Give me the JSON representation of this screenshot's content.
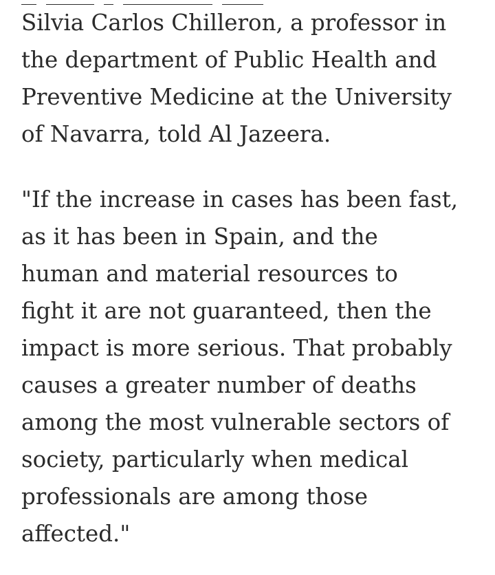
{
  "article": {
    "paragraphs": [
      {
        "lines": [
          "Silvia Carlos Chilleron, a professor in",
          "the department of Public Health and",
          "Preventive Medicine at the University",
          "of Navarra, told Al Jazeera."
        ]
      },
      {
        "lines": [
          "\"If the increase in cases has been fast,",
          "as it has been in Spain, and the",
          "human and material resources to",
          "fight it are not guaranteed, then the",
          "impact is more serious. That probably",
          "causes a greater number of deaths",
          "among the most vulnerable sectors of",
          "society, particularly when medical",
          "professionals are among those",
          "affected.\""
        ]
      }
    ]
  }
}
